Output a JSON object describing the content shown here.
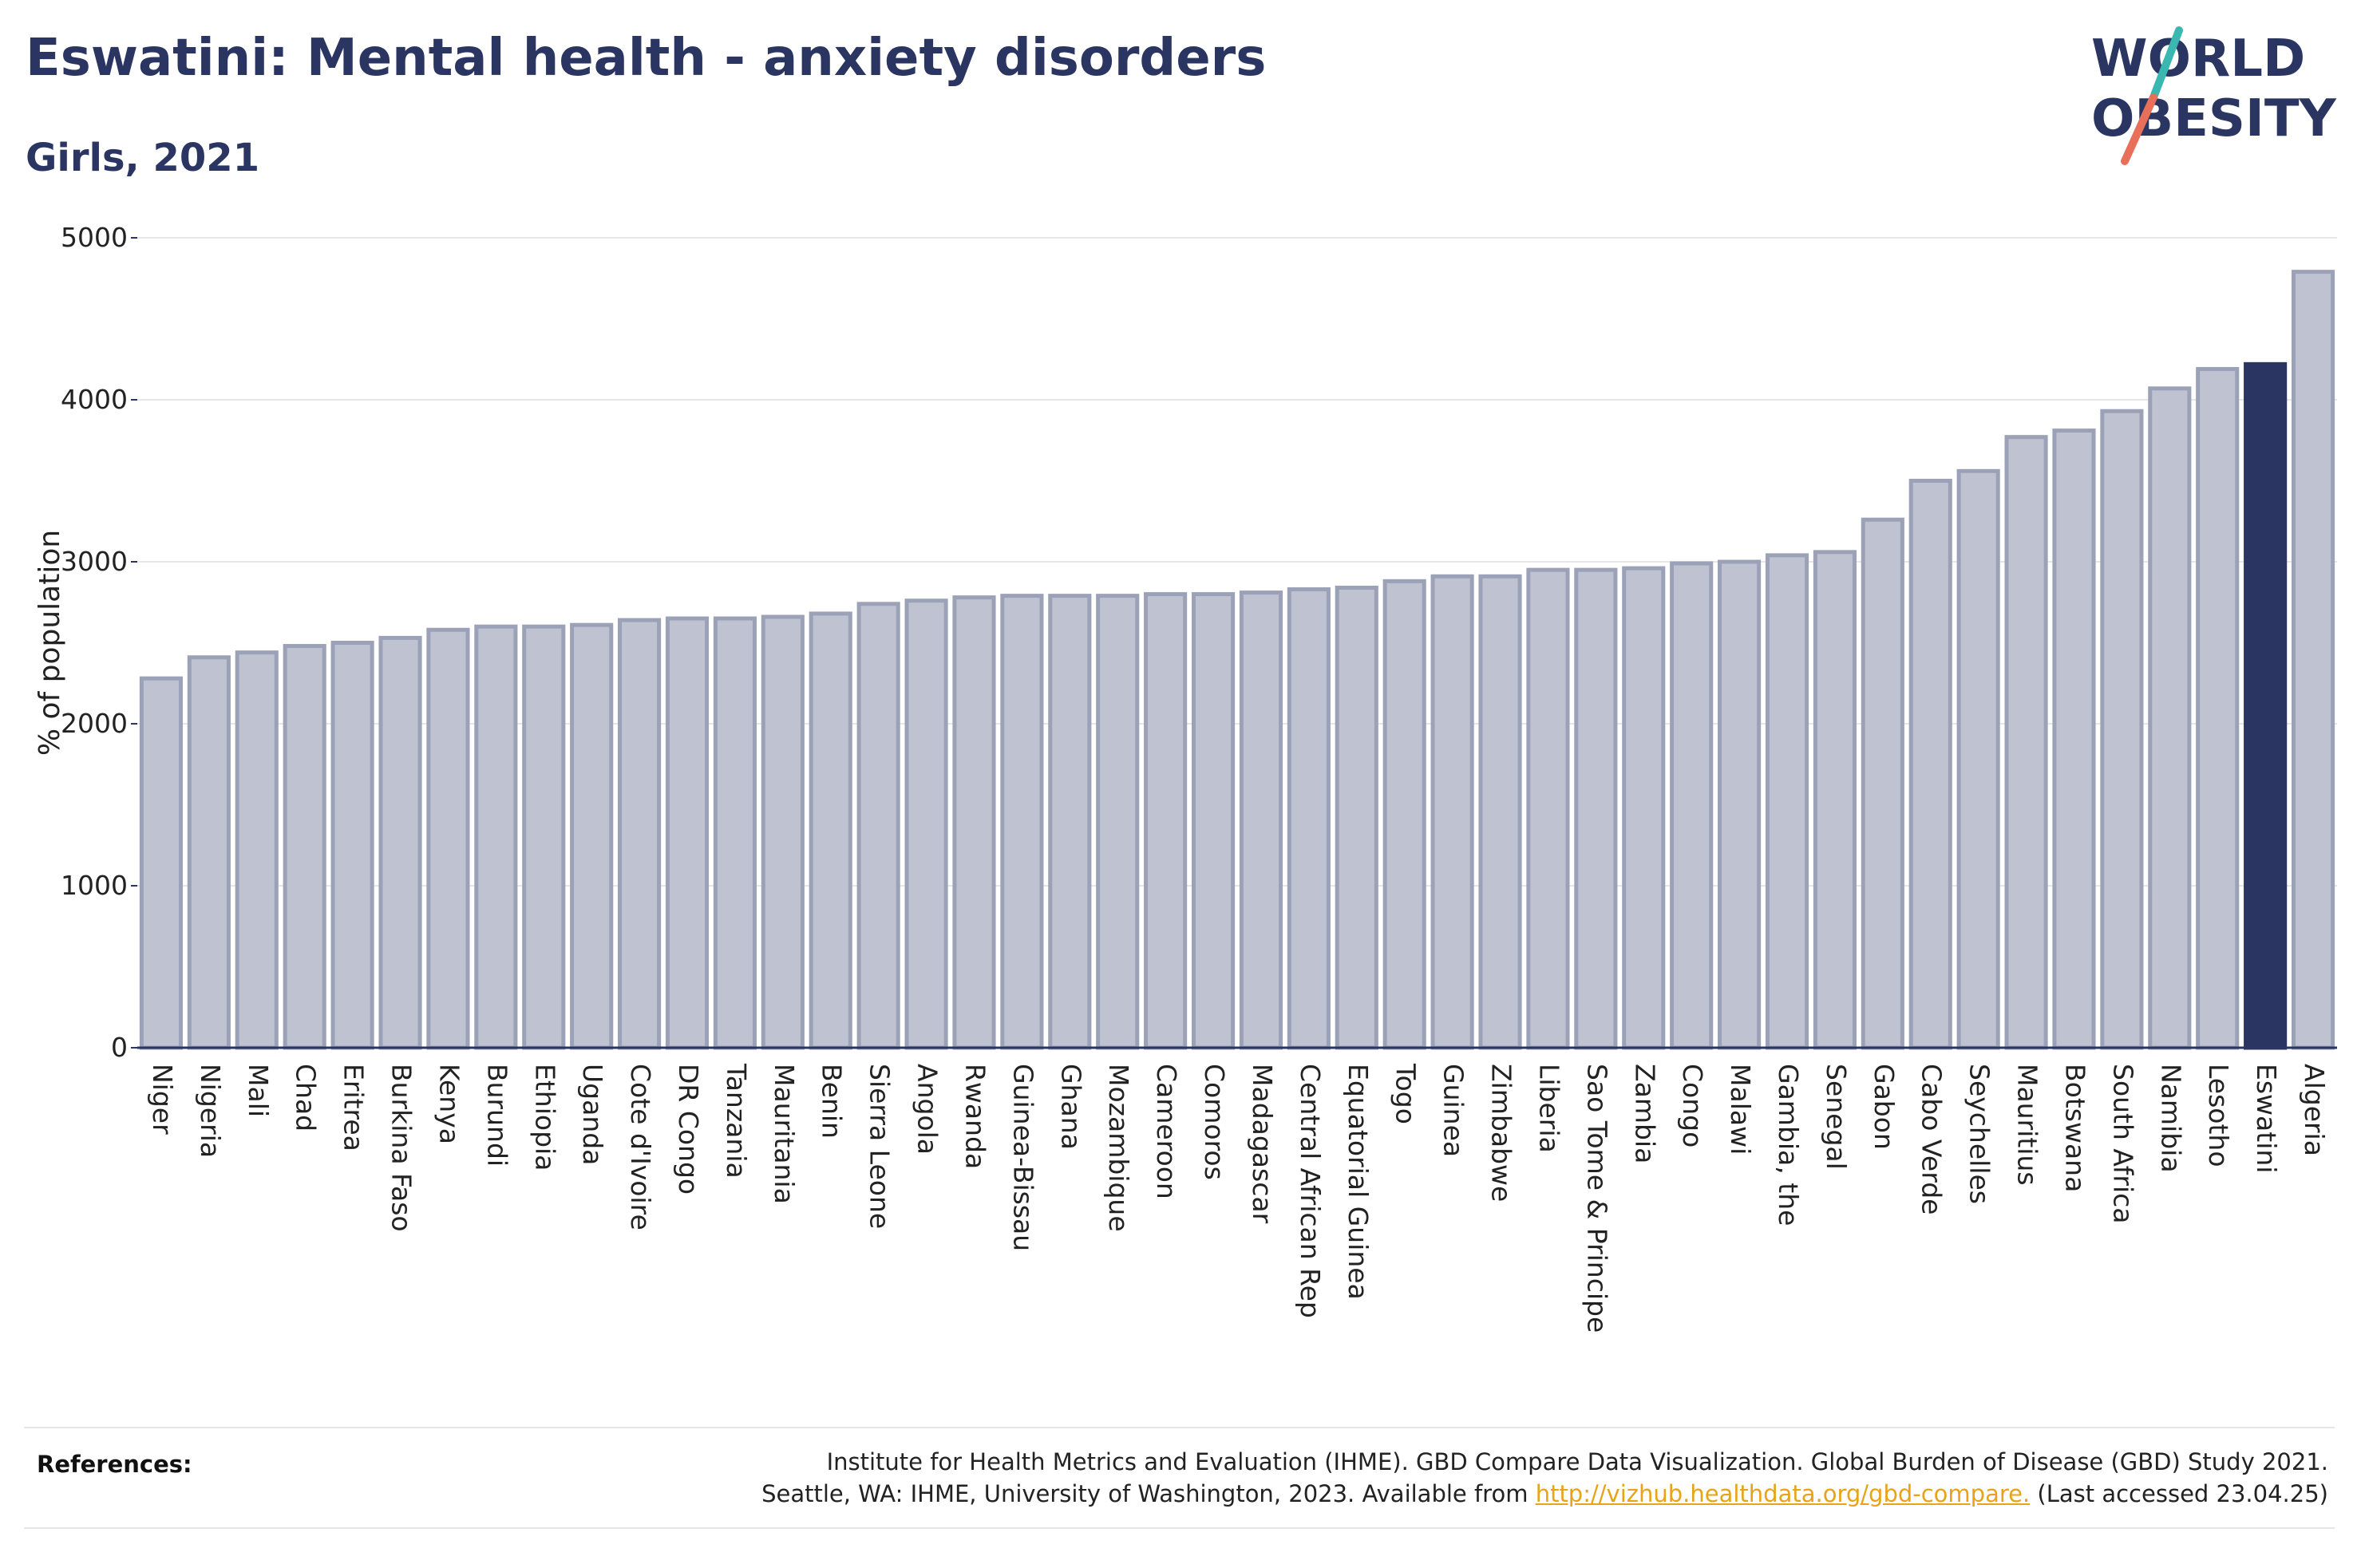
{
  "header": {
    "title": "Eswatini: Mental health - anxiety disorders",
    "subtitle": "Girls, 2021"
  },
  "logo": {
    "line1": "WORLD",
    "line2": "OBESITY",
    "text_color": "#2b3561",
    "slash_color_top": "#3ab7b0",
    "slash_color_bottom": "#e8705a"
  },
  "chart_data": {
    "type": "bar",
    "title": "Eswatini: Mental health - anxiety disorders",
    "subtitle": "Girls, 2021",
    "ylabel": "% of population",
    "xlabel": "",
    "ylim": [
      0,
      5000
    ],
    "yticks": [
      0,
      1000,
      2000,
      3000,
      4000,
      5000
    ],
    "grid": true,
    "highlight": "Eswatini",
    "bar_color": "#bfc3d1",
    "bar_edge_color": "#9ba1b7",
    "highlight_color": "#2b3561",
    "categories": [
      "Niger",
      "Nigeria",
      "Mali",
      "Chad",
      "Eritrea",
      "Burkina Faso",
      "Kenya",
      "Burundi",
      "Ethiopia",
      "Uganda",
      "Cote d'Ivoire",
      "DR Congo",
      "Tanzania",
      "Mauritania",
      "Benin",
      "Sierra Leone",
      "Angola",
      "Rwanda",
      "Guinea-Bissau",
      "Ghana",
      "Mozambique",
      "Cameroon",
      "Comoros",
      "Madagascar",
      "Central African Rep",
      "Equatorial Guinea",
      "Togo",
      "Guinea",
      "Zimbabwe",
      "Liberia",
      "Sao Tome & Principe",
      "Zambia",
      "Congo",
      "Malawi",
      "Gambia, the",
      "Senegal",
      "Gabon",
      "Cabo Verde",
      "Seychelles",
      "Mauritius",
      "Botswana",
      "South Africa",
      "Namibia",
      "Lesotho",
      "Eswatini",
      "Algeria"
    ],
    "values": [
      2280,
      2410,
      2440,
      2480,
      2500,
      2530,
      2580,
      2600,
      2600,
      2610,
      2640,
      2650,
      2650,
      2660,
      2680,
      2740,
      2760,
      2780,
      2790,
      2790,
      2790,
      2800,
      2800,
      2810,
      2830,
      2840,
      2880,
      2910,
      2910,
      2950,
      2950,
      2960,
      2990,
      3000,
      3040,
      3060,
      3260,
      3500,
      3560,
      3770,
      3810,
      3930,
      4070,
      4190,
      4220,
      4790
    ]
  },
  "references": {
    "label": "References:",
    "line1": "Institute for Health Metrics and Evaluation (IHME). GBD Compare Data Visualization. Global Burden of Disease (GBD) Study 2021.",
    "line2_prefix": "Seattle, WA: IHME, University of Washington, 2023. Available from ",
    "link_text": "http://vizhub.healthdata.org/gbd-compare.",
    "line2_suffix": " (Last accessed 23.04.25)"
  }
}
